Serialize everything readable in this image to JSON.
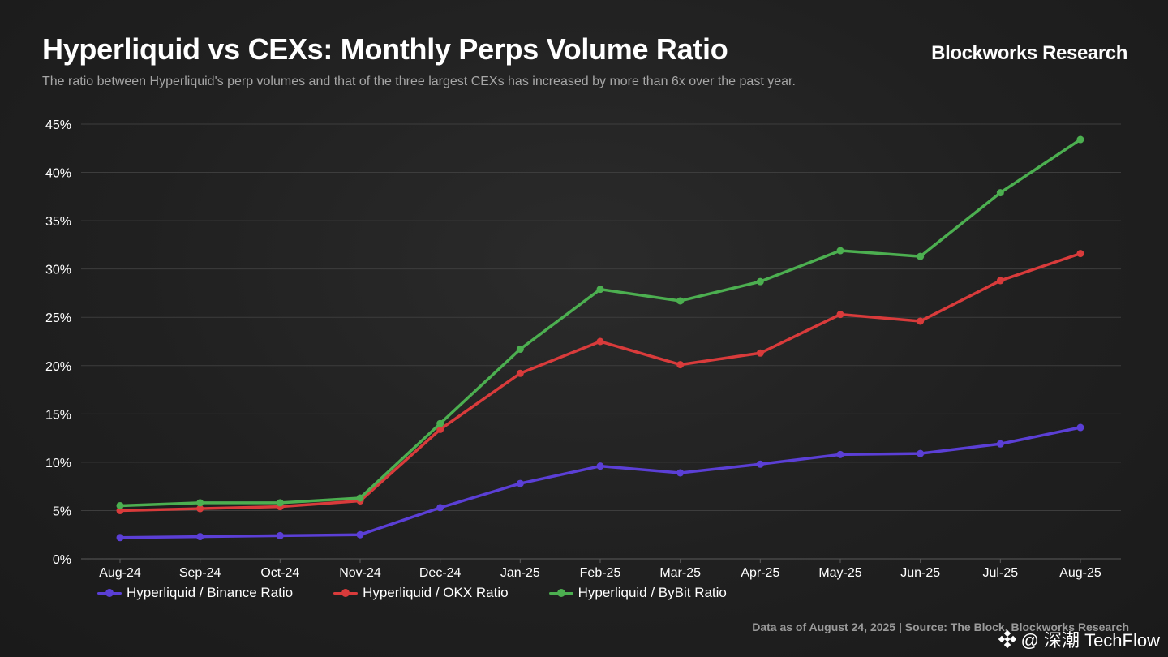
{
  "header": {
    "title": "Hyperliquid vs CEXs: Monthly Perps Volume Ratio",
    "subtitle": "The ratio between Hyperliquid's perp volumes and that of the three largest CEXs has increased by more than 6x over the past year.",
    "brand": "Blockworks Research"
  },
  "footer": {
    "note": "Data as of August 24, 2025 | Source: The Block, Blockworks Research",
    "watermark": "@ 深潮 TechFlow"
  },
  "chart_data": {
    "type": "line",
    "title": "Hyperliquid vs CEXs: Monthly Perps Volume Ratio",
    "xlabel": "",
    "ylabel": "",
    "categories": [
      "Aug-24",
      "Sep-24",
      "Oct-24",
      "Nov-24",
      "Dec-24",
      "Jan-25",
      "Feb-25",
      "Mar-25",
      "Apr-25",
      "May-25",
      "Jun-25",
      "Jul-25",
      "Aug-25"
    ],
    "yticks": [
      "0%",
      "5%",
      "10%",
      "15%",
      "20%",
      "25%",
      "30%",
      "35%",
      "40%",
      "45%"
    ],
    "ylim": [
      0,
      45
    ],
    "grid": true,
    "legend_position": "bottom-left",
    "series": [
      {
        "name": "Hyperliquid / Binance Ratio",
        "color": "#5b3fd6",
        "values": [
          2.2,
          2.3,
          2.4,
          2.5,
          5.3,
          7.8,
          9.6,
          8.9,
          9.8,
          10.8,
          10.9,
          11.9,
          13.6
        ]
      },
      {
        "name": "Hyperliquid / OKX Ratio",
        "color": "#d93b3b",
        "values": [
          5.0,
          5.2,
          5.4,
          6.0,
          13.4,
          19.2,
          22.5,
          20.1,
          21.3,
          25.3,
          24.6,
          28.8,
          31.6
        ]
      },
      {
        "name": "Hyperliquid / ByBit Ratio",
        "color": "#4caf50",
        "values": [
          5.5,
          5.8,
          5.8,
          6.3,
          14.0,
          21.7,
          27.9,
          26.7,
          28.7,
          31.9,
          31.3,
          37.9,
          43.4
        ]
      }
    ]
  }
}
